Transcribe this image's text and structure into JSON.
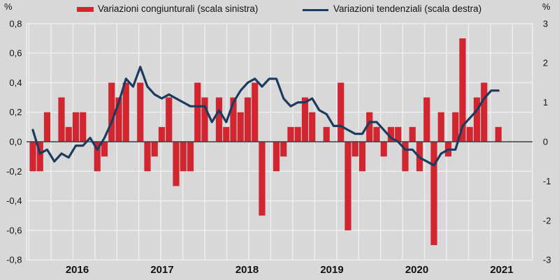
{
  "colors": {
    "background": "#d8d8d8",
    "gridline": "#efefef",
    "zero_line": "#3c3c3c",
    "bar_red": "#d12530",
    "line_navy": "#1c3b5e",
    "text": "#121212"
  },
  "legend": {
    "items": [
      {
        "label": "Variazioni congiunturali (scala sinistra)",
        "swatch": "bar-swatch",
        "color": "#d12530"
      },
      {
        "label": "Variazioni tendenziali (scala destra)",
        "swatch": "line-swatch",
        "color": "#1c3b5e"
      }
    ]
  },
  "left_axis_unit": "%",
  "right_axis_unit": "%",
  "chart_data": {
    "type": "bar",
    "subtype": "bar+line dual axis",
    "title": "",
    "legend_position": "top",
    "grid": true,
    "left_axis": {
      "unit": "%",
      "min": -0.8,
      "max": 0.8,
      "step": 0.2,
      "tick_labels": [
        "0,8",
        "0,6",
        "0,4",
        "0,2",
        "0,0",
        "-0,2",
        "-0,4",
        "-0,6",
        "-0,8"
      ],
      "tick_values": [
        0.8,
        0.6,
        0.4,
        0.2,
        0.0,
        -0.2,
        -0.4,
        -0.6,
        -0.8
      ]
    },
    "right_axis": {
      "unit": "%",
      "min": -3,
      "max": 3,
      "step": 1,
      "tick_labels": [
        "3",
        "2",
        "1",
        "0",
        "-1",
        "-2",
        "-3"
      ],
      "tick_values": [
        3,
        2,
        1,
        0,
        -1,
        -2,
        -3
      ]
    },
    "x_axis": {
      "year_labels": [
        "2016",
        "2017",
        "2018",
        "2019",
        "2020",
        "2021"
      ]
    },
    "x": [
      "2016-01",
      "2016-02",
      "2016-03",
      "2016-04",
      "2016-05",
      "2016-06",
      "2016-07",
      "2016-08",
      "2016-09",
      "2016-10",
      "2016-11",
      "2016-12",
      "2017-01",
      "2017-02",
      "2017-03",
      "2017-04",
      "2017-05",
      "2017-06",
      "2017-07",
      "2017-08",
      "2017-09",
      "2017-10",
      "2017-11",
      "2017-12",
      "2018-01",
      "2018-02",
      "2018-03",
      "2018-04",
      "2018-05",
      "2018-06",
      "2018-07",
      "2018-08",
      "2018-09",
      "2018-10",
      "2018-11",
      "2018-12",
      "2019-01",
      "2019-02",
      "2019-03",
      "2019-04",
      "2019-05",
      "2019-06",
      "2019-07",
      "2019-08",
      "2019-09",
      "2019-10",
      "2019-11",
      "2019-12",
      "2020-01",
      "2020-02",
      "2020-03",
      "2020-04",
      "2020-05",
      "2020-06",
      "2020-07",
      "2020-08",
      "2020-09",
      "2020-10",
      "2020-11",
      "2020-12",
      "2021-01",
      "2021-02",
      "2021-03",
      "2021-04",
      "2021-05",
      "2021-06"
    ],
    "series": [
      {
        "name": "Variazioni congiunturali (scala sinistra)",
        "type": "bar",
        "axis": "left",
        "color": "#d12530",
        "values": [
          -0.2,
          -0.2,
          0.2,
          0.0,
          0.3,
          0.1,
          0.2,
          0.2,
          0.0,
          -0.2,
          -0.1,
          0.4,
          0.3,
          0.4,
          0.0,
          0.4,
          -0.2,
          -0.1,
          0.1,
          0.3,
          -0.3,
          -0.2,
          -0.2,
          0.4,
          0.3,
          0.0,
          0.3,
          0.1,
          0.3,
          0.2,
          0.3,
          0.4,
          -0.5,
          0.0,
          -0.2,
          -0.1,
          0.1,
          0.1,
          0.3,
          0.2,
          0.0,
          0.1,
          0.0,
          0.4,
          -0.6,
          -0.1,
          -0.2,
          0.2,
          0.1,
          -0.1,
          0.1,
          0.1,
          -0.2,
          0.1,
          -0.2,
          0.3,
          -0.7,
          0.2,
          -0.1,
          0.2,
          0.7,
          0.1,
          0.3,
          0.4,
          0.0,
          0.1
        ]
      },
      {
        "name": "Variazioni tendenziali (scala destra)",
        "type": "line",
        "axis": "right",
        "color": "#1c3b5e",
        "values": [
          0.3,
          -0.3,
          -0.2,
          -0.5,
          -0.3,
          -0.4,
          -0.1,
          -0.1,
          0.1,
          -0.2,
          0.1,
          0.5,
          1.0,
          1.6,
          1.4,
          1.9,
          1.4,
          1.2,
          1.1,
          1.2,
          1.1,
          1.0,
          0.9,
          0.9,
          0.9,
          0.5,
          0.8,
          0.5,
          1.0,
          1.3,
          1.5,
          1.6,
          1.4,
          1.6,
          1.6,
          1.1,
          0.9,
          1.0,
          1.0,
          1.1,
          0.8,
          0.7,
          0.4,
          0.4,
          0.3,
          0.2,
          0.2,
          0.5,
          0.5,
          0.3,
          0.1,
          0.0,
          -0.2,
          -0.2,
          -0.4,
          -0.5,
          -0.6,
          -0.3,
          -0.2,
          -0.2,
          0.4,
          0.6,
          0.8,
          1.1,
          1.3,
          1.3
        ]
      }
    ]
  }
}
